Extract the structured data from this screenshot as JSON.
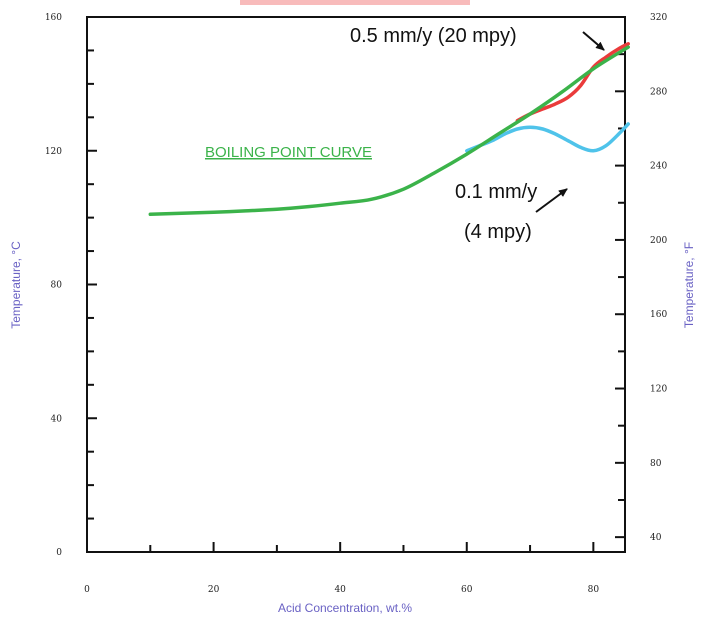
{
  "chart_data": {
    "type": "line",
    "title": "",
    "xlabel": "Acid Concentration, wt.%",
    "ylabel": "Temperature, °C",
    "y2label": "Temperature, °F",
    "xlim": [
      0,
      85
    ],
    "ylim": [
      0,
      160
    ],
    "y2lim": [
      32,
      320
    ],
    "x_ticks": [
      "0",
      "20",
      "40",
      "60",
      "80"
    ],
    "y_ticks": [
      "0",
      "40",
      "80",
      "120",
      "160"
    ],
    "y2_ticks": [
      "40",
      "80",
      "120",
      "160",
      "200",
      "240",
      "280",
      "320"
    ],
    "grid": false,
    "series": [
      {
        "name": "0.1 mm/y (4 mpy)",
        "color": "#4fc3ea",
        "x": [
          60,
          62,
          64,
          66,
          68,
          70,
          72,
          74,
          76,
          78,
          80,
          82,
          84,
          85.5
        ],
        "y": [
          120,
          121.5,
          123,
          125,
          126.5,
          127,
          126.5,
          125,
          123,
          121,
          120,
          121.5,
          125,
          128
        ]
      },
      {
        "name": "0.5 mm/y (20 mpy)",
        "color": "#ea3b3b",
        "x": [
          68,
          70,
          72,
          74,
          76,
          78,
          80,
          82,
          84,
          85.5
        ],
        "y": [
          129,
          131,
          132.5,
          134,
          136,
          139.5,
          145,
          148,
          150.5,
          152
        ]
      },
      {
        "name": "BOILING POINT CURVE",
        "color": "#3bb34a",
        "x": [
          10,
          15,
          20,
          25,
          30,
          35,
          40,
          45,
          50,
          55,
          60,
          65,
          70,
          75,
          80,
          85.5
        ],
        "y": [
          101,
          101.3,
          101.6,
          102,
          102.5,
          103.3,
          104.3,
          105.5,
          108.5,
          113.5,
          119,
          125,
          131,
          137.5,
          144.5,
          151
        ]
      }
    ],
    "annotations": [
      {
        "text": "0.5 mm/y (20 mpy)",
        "target_x": 82,
        "target_y": 148
      },
      {
        "text": "0.1 mm/y",
        "target_x": 77,
        "target_y": 121
      },
      {
        "text": "(4 mpy)"
      },
      {
        "text": "BOILING POINT CURVE"
      }
    ]
  }
}
